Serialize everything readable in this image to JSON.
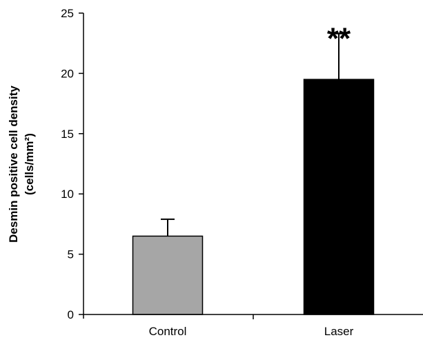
{
  "chart_data": {
    "type": "bar",
    "categories": [
      "Control",
      "Laser"
    ],
    "series": [
      {
        "values": [
          6.5,
          19.5
        ],
        "errors": [
          1.4,
          3.8
        ],
        "colors": [
          "#a6a6a6",
          "#000000"
        ]
      }
    ],
    "ylabel_line1": "Desmin positive cell density",
    "ylabel_line2": "(cells/mm²)",
    "xlabel": "",
    "ylim": [
      0,
      25
    ],
    "yticks": [
      "0",
      "5",
      "10",
      "15",
      "20",
      "25"
    ],
    "grid": false,
    "annotations": [
      {
        "category": "Laser",
        "text": "**"
      }
    ]
  }
}
